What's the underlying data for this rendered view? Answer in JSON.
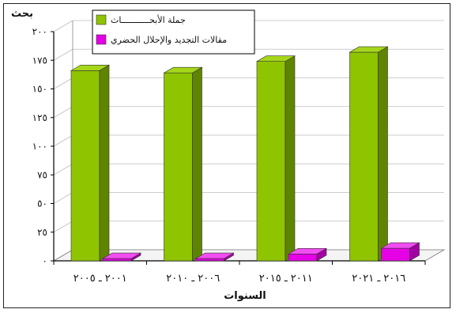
{
  "chart_data": {
    "type": "bar",
    "ylabel": "بحث",
    "xlabel": "السنوات",
    "ylim": [
      0,
      200
    ],
    "yticks": [
      "٠",
      "٢٥",
      "٥٠",
      "٧٥",
      "١٠٠",
      "١٢٥",
      "١٥٠",
      "١٧٥",
      "٢٠٠"
    ],
    "categories": [
      "٢٠٠١ ـ ٢٠٠٥",
      "٢٠٠٦ ـ ٢٠١٠",
      "٢٠١١ ـ ٢٠١٥",
      "٢٠١٦ ـ ٢٠٢١"
    ],
    "series": [
      {
        "name": "جملة الأبحـــــــــــاث",
        "values": [
          166,
          164,
          174,
          182
        ]
      },
      {
        "name": "مقالات التجديد والإحلال الحضري",
        "values": [
          2,
          2,
          6,
          11
        ]
      }
    ],
    "legend_position": "top-left",
    "grid": true,
    "colors": {
      "series1_front": "#8fc400",
      "series1_side": "#5f8500",
      "series1_top": "#a6d61a",
      "series2_front": "#e600e6",
      "series2_side": "#a300a3",
      "series2_top": "#f24df2"
    }
  }
}
